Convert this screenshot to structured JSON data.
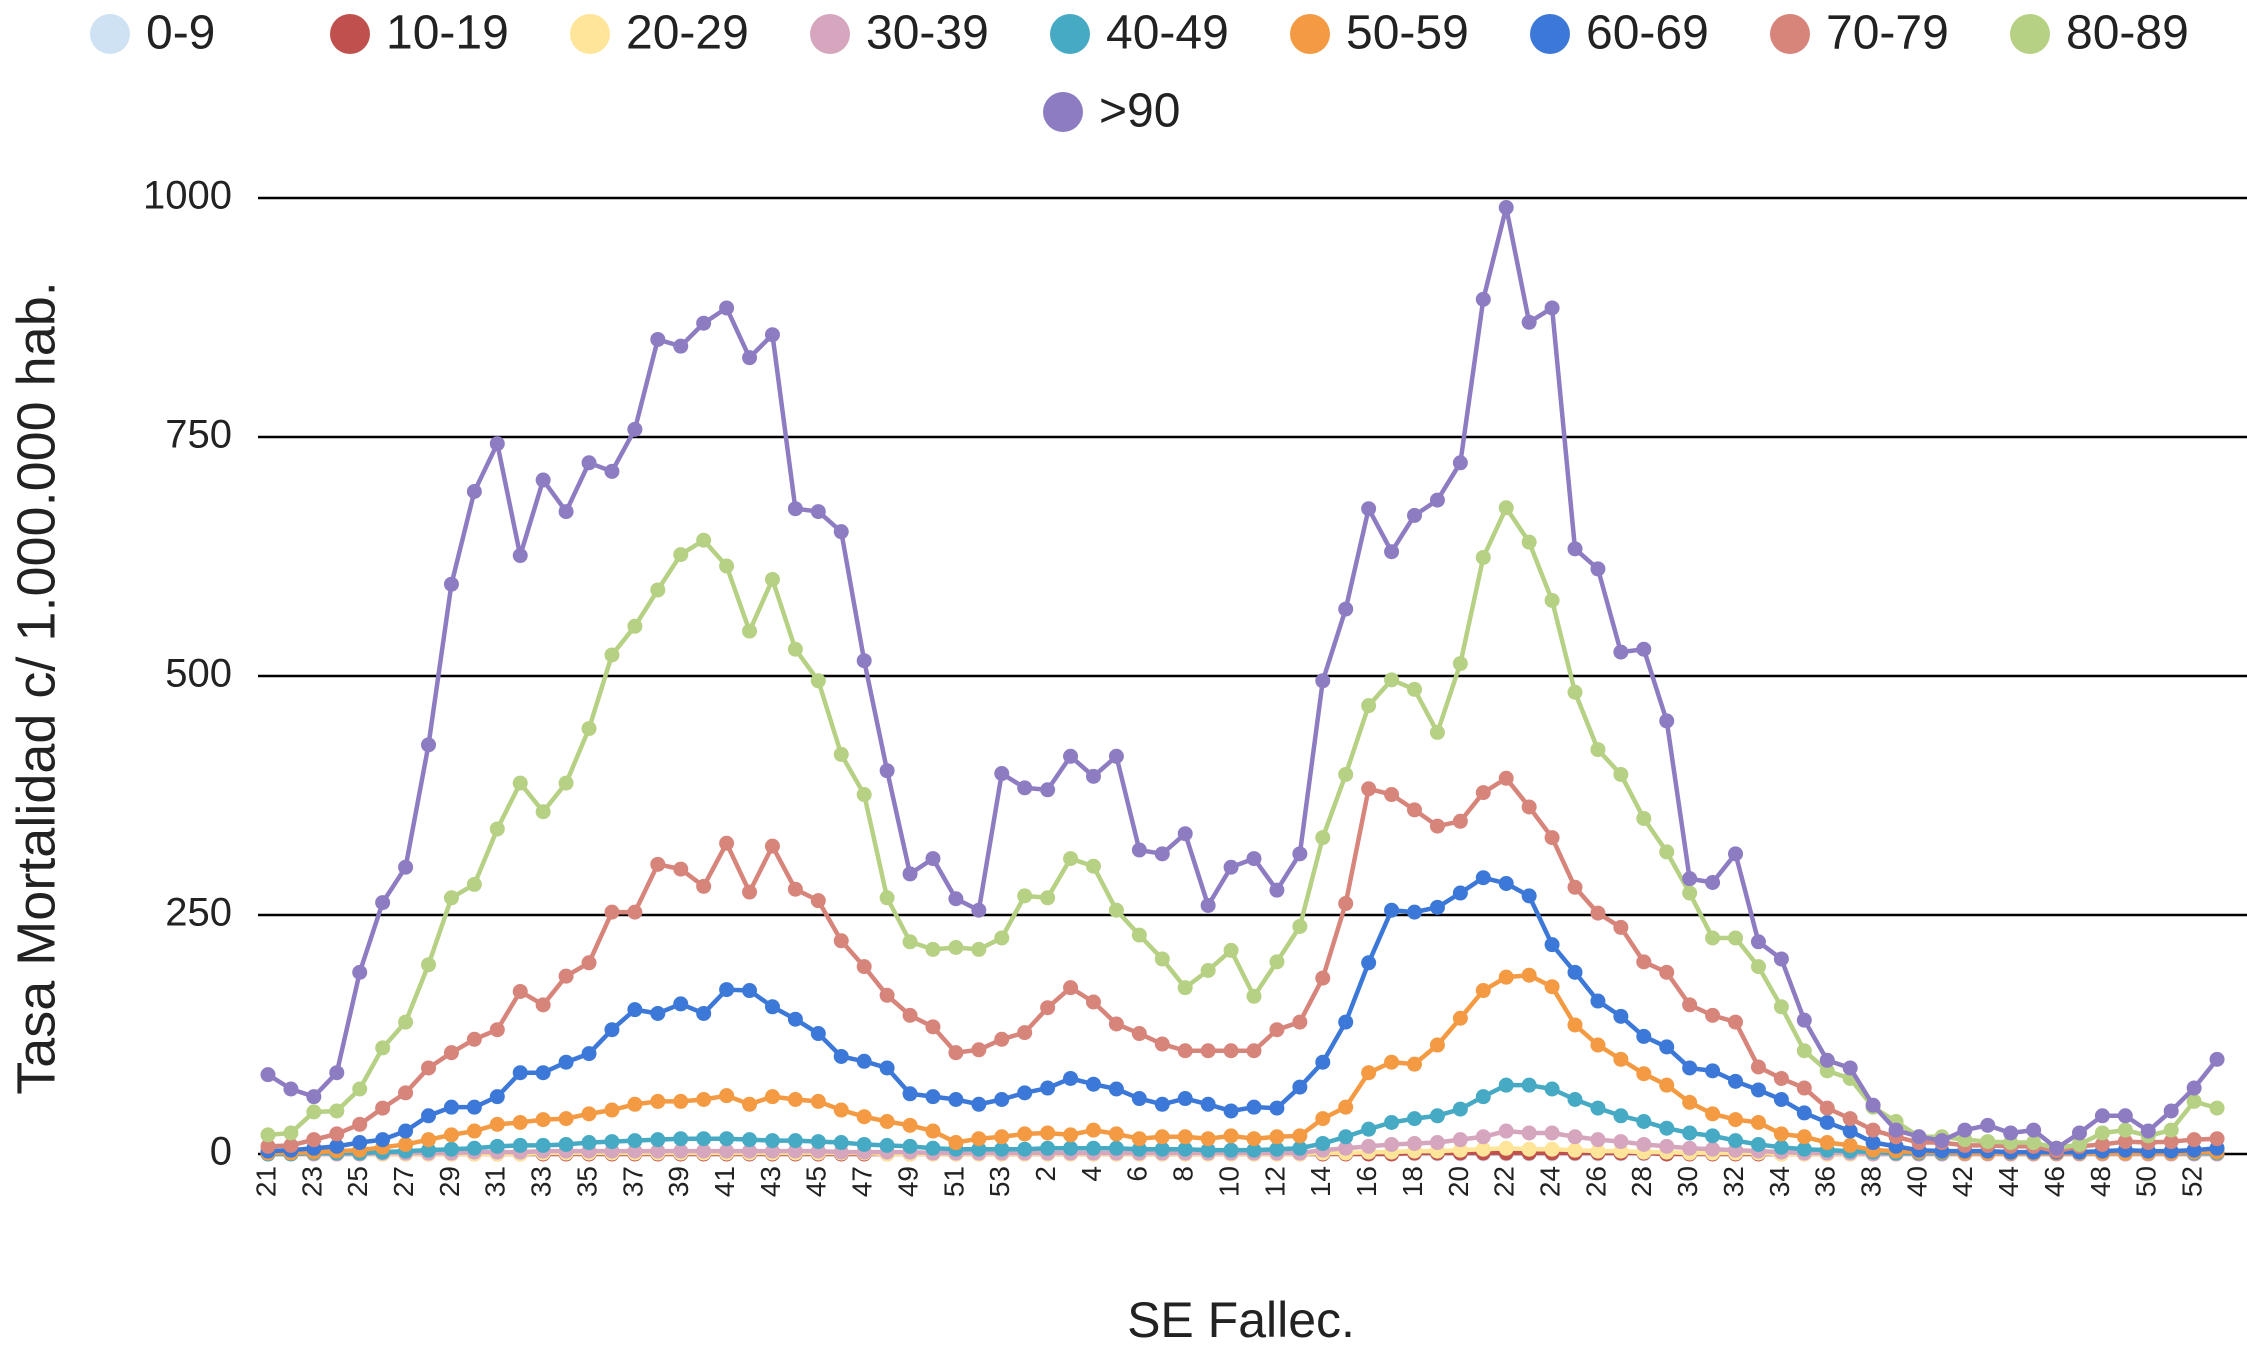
{
  "chart_data": {
    "type": "line",
    "y_label": "Tasa Mortalidad c/ 1.000.000 hab.",
    "x_label": "SE Fallec.",
    "legend": "top",
    "grid": true,
    "ylim": [
      0,
      1000
    ],
    "yticks": [
      0,
      250,
      500,
      750,
      1000
    ],
    "categories": [
      "21",
      null,
      "23",
      null,
      "25",
      null,
      "27",
      null,
      "29",
      null,
      "31",
      null,
      "33",
      null,
      "35",
      null,
      "37",
      null,
      "39",
      null,
      "41",
      null,
      "43",
      null,
      "45",
      null,
      "47",
      null,
      "49",
      null,
      "51",
      null,
      "53",
      null,
      "2",
      null,
      "4",
      null,
      "6",
      null,
      "8",
      null,
      "10",
      null,
      "12",
      null,
      "14",
      null,
      "16",
      null,
      "18",
      null,
      "20",
      null,
      "22",
      null,
      "24",
      null,
      "26",
      null,
      "28",
      null,
      "30",
      null,
      "32",
      null,
      "34",
      null,
      "36",
      null,
      "38",
      null,
      "40",
      null,
      "42",
      null,
      "44",
      null,
      "46",
      null,
      "48",
      null,
      "50",
      null,
      "52",
      null
    ],
    "series": [
      {
        "name": "0-9",
        "color": "#cfe2f3",
        "values": [
          0,
          0,
          0,
          0,
          0,
          0,
          0,
          0,
          0,
          0,
          0,
          0,
          0,
          0,
          0,
          0,
          0,
          0,
          0,
          0,
          0,
          0,
          0,
          0,
          0,
          0,
          0,
          0,
          0,
          0,
          0,
          0,
          0,
          0,
          0,
          0,
          0,
          0,
          0,
          0,
          0,
          0,
          0,
          0,
          0,
          0,
          0,
          0,
          0,
          0,
          0,
          0,
          0,
          0,
          0,
          0,
          0,
          0,
          0,
          0,
          0,
          0,
          0,
          0,
          0,
          0,
          0,
          0,
          0,
          0,
          0,
          0,
          0,
          0,
          0,
          0,
          0,
          0,
          0,
          0,
          0,
          0,
          0,
          0,
          0,
          0
        ]
      },
      {
        "name": "10-19",
        "color": "#c0504d",
        "values": [
          0,
          0,
          0,
          0,
          0,
          0,
          0,
          0,
          0,
          0,
          0,
          0,
          0,
          0,
          0,
          0,
          0,
          0,
          0,
          0,
          0,
          0,
          0,
          0,
          0,
          0,
          0,
          0,
          0,
          0,
          0,
          0,
          0,
          0,
          0,
          0,
          0,
          0,
          0,
          0,
          0,
          0,
          0,
          0,
          0,
          0,
          0,
          0,
          0,
          0,
          1,
          1,
          1,
          1,
          1,
          1,
          1,
          1,
          1,
          1,
          1,
          0,
          0,
          0,
          0,
          0,
          0,
          0,
          0,
          0,
          0,
          0,
          0,
          0,
          0,
          0,
          0,
          0,
          0,
          0,
          0,
          0,
          0,
          0,
          0,
          0
        ]
      },
      {
        "name": "20-29",
        "color": "#ffe599",
        "values": [
          0,
          0,
          0,
          0,
          0,
          0,
          0,
          0,
          0,
          0,
          0,
          0,
          1,
          1,
          1,
          1,
          1,
          1,
          1,
          1,
          1,
          1,
          1,
          1,
          1,
          1,
          1,
          0,
          0,
          0,
          0,
          0,
          0,
          0,
          0,
          0,
          0,
          0,
          0,
          0,
          0,
          0,
          0,
          0,
          0,
          0,
          1,
          1,
          2,
          2,
          3,
          3,
          4,
          5,
          6,
          5,
          5,
          4,
          3,
          3,
          2,
          2,
          1,
          1,
          1,
          1,
          0,
          0,
          0,
          0,
          0,
          0,
          0,
          0,
          0,
          0,
          0,
          0,
          0,
          0,
          0,
          0,
          0,
          0,
          0,
          0
        ]
      },
      {
        "name": "30-39",
        "color": "#d5a6bd",
        "values": [
          0,
          0,
          0,
          0,
          0,
          1,
          1,
          1,
          1,
          2,
          2,
          2,
          3,
          3,
          3,
          3,
          3,
          3,
          3,
          3,
          3,
          3,
          3,
          3,
          3,
          2,
          2,
          2,
          2,
          1,
          1,
          1,
          1,
          1,
          1,
          1,
          1,
          1,
          1,
          1,
          1,
          1,
          1,
          1,
          1,
          1,
          4,
          6,
          8,
          10,
          11,
          12,
          15,
          18,
          24,
          22,
          22,
          18,
          15,
          13,
          10,
          8,
          6,
          5,
          4,
          3,
          2,
          1,
          1,
          1,
          0,
          0,
          0,
          0,
          0,
          0,
          0,
          0,
          0,
          0,
          0,
          0,
          0,
          0,
          0,
          0
        ]
      },
      {
        "name": "40-49",
        "color": "#46aac4",
        "values": [
          0,
          0,
          1,
          1,
          1,
          2,
          3,
          4,
          5,
          6,
          8,
          9,
          9,
          10,
          12,
          13,
          14,
          15,
          16,
          16,
          16,
          15,
          14,
          14,
          13,
          12,
          10,
          9,
          8,
          6,
          5,
          5,
          5,
          5,
          6,
          6,
          6,
          6,
          5,
          5,
          5,
          4,
          4,
          4,
          5,
          6,
          11,
          18,
          26,
          33,
          37,
          40,
          47,
          60,
          72,
          72,
          68,
          57,
          48,
          40,
          34,
          27,
          22,
          19,
          14,
          10,
          7,
          5,
          4,
          3,
          2,
          1,
          1,
          1,
          1,
          1,
          1,
          1,
          1,
          1,
          1,
          1,
          1,
          1,
          1,
          1
        ]
      },
      {
        "name": "50-59",
        "color": "#f39a43",
        "values": [
          1,
          1,
          2,
          3,
          4,
          7,
          10,
          15,
          20,
          24,
          31,
          33,
          36,
          37,
          42,
          46,
          52,
          55,
          55,
          57,
          61,
          52,
          60,
          57,
          55,
          46,
          39,
          34,
          30,
          24,
          12,
          16,
          18,
          21,
          22,
          20,
          25,
          21,
          16,
          18,
          18,
          16,
          19,
          16,
          18,
          19,
          37,
          49,
          85,
          96,
          94,
          114,
          142,
          171,
          185,
          187,
          175,
          135,
          114,
          99,
          84,
          72,
          54,
          42,
          36,
          33,
          21,
          18,
          12,
          9,
          4,
          3,
          2,
          2,
          1,
          1,
          1,
          1,
          1,
          1,
          1,
          1,
          1,
          1,
          2,
          2
        ]
      },
      {
        "name": "60-69",
        "color": "#3c78d8",
        "values": [
          3,
          4,
          6,
          8,
          12,
          15,
          24,
          40,
          49,
          49,
          60,
          85,
          85,
          96,
          105,
          130,
          151,
          147,
          157,
          147,
          172,
          171,
          154,
          141,
          126,
          102,
          97,
          90,
          63,
          60,
          57,
          52,
          57,
          64,
          69,
          79,
          73,
          68,
          58,
          52,
          58,
          52,
          45,
          49,
          48,
          70,
          96,
          138,
          200,
          255,
          253,
          258,
          273,
          289,
          283,
          270,
          219,
          190,
          160,
          144,
          123,
          112,
          90,
          87,
          76,
          67,
          57,
          43,
          33,
          24,
          12,
          8,
          4,
          3,
          3,
          3,
          2,
          2,
          2,
          2,
          3,
          4,
          3,
          3,
          4,
          6
        ]
      },
      {
        "name": "70-79",
        "color": "#d7847b",
        "values": [
          8,
          9,
          15,
          21,
          31,
          48,
          64,
          90,
          106,
          120,
          130,
          170,
          156,
          186,
          200,
          253,
          253,
          303,
          298,
          280,
          325,
          274,
          322,
          277,
          265,
          223,
          196,
          166,
          145,
          133,
          106,
          109,
          120,
          127,
          153,
          174,
          159,
          136,
          126,
          115,
          108,
          108,
          108,
          108,
          130,
          138,
          184,
          262,
          382,
          376,
          360,
          343,
          348,
          378,
          393,
          363,
          331,
          279,
          252,
          237,
          201,
          190,
          156,
          145,
          138,
          91,
          79,
          69,
          48,
          37,
          25,
          18,
          12,
          12,
          9,
          9,
          8,
          8,
          3,
          8,
          10,
          13,
          12,
          13,
          15,
          16
        ]
      },
      {
        "name": "80-89",
        "color": "#b6d084",
        "values": [
          20,
          22,
          44,
          45,
          68,
          111,
          138,
          198,
          268,
          282,
          340,
          388,
          358,
          388,
          445,
          522,
          552,
          590,
          627,
          642,
          615,
          547,
          601,
          528,
          495,
          418,
          376,
          268,
          222,
          214,
          216,
          214,
          226,
          270,
          268,
          309,
          301,
          255,
          229,
          204,
          174,
          192,
          213,
          165,
          201,
          238,
          331,
          397,
          469,
          496,
          486,
          441,
          513,
          624,
          676,
          640,
          579,
          483,
          423,
          397,
          351,
          316,
          273,
          226,
          226,
          196,
          154,
          108,
          87,
          79,
          49,
          34,
          18,
          18,
          15,
          13,
          12,
          12,
          6,
          10,
          22,
          25,
          19,
          25,
          55,
          48
        ]
      },
      {
        "name": ">90",
        "color": "#8e7cc3",
        "values": [
          83,
          68,
          60,
          85,
          190,
          263,
          300,
          428,
          596,
          693,
          743,
          626,
          705,
          672,
          723,
          714,
          758,
          852,
          845,
          869,
          885,
          833,
          857,
          675,
          672,
          651,
          516,
          401,
          293,
          309,
          267,
          255,
          398,
          383,
          381,
          416,
          395,
          416,
          318,
          314,
          335,
          260,
          300,
          309,
          276,
          314,
          495,
          570,
          675,
          630,
          668,
          684,
          723,
          894,
          990,
          870,
          885,
          633,
          612,
          525,
          528,
          453,
          288,
          284,
          314,
          222,
          204,
          140,
          98,
          90,
          51,
          25,
          18,
          14,
          25,
          30,
          22,
          25,
          6,
          22,
          40,
          40,
          24,
          45,
          69,
          99
        ]
      }
    ]
  }
}
